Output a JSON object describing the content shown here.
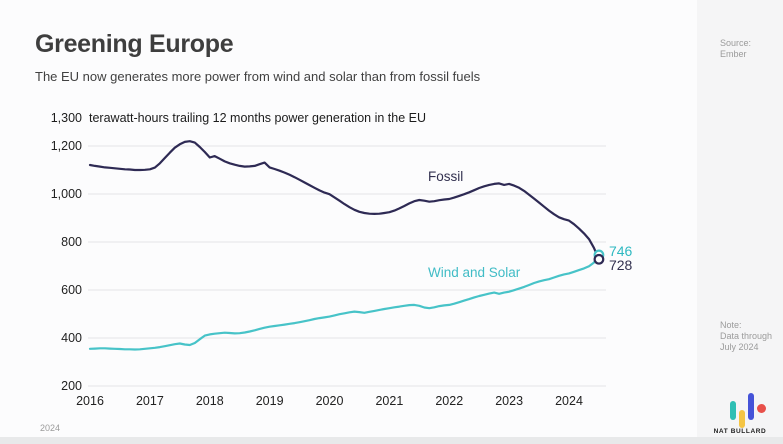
{
  "header": {
    "title": "Greening Europe",
    "subtitle": "The EU now generates more power from wind and solar than from fossil fuels"
  },
  "chart": {
    "y_axis_top_label": "1,300",
    "axis_title": "terawatt-hours trailing 12 months power generation in the EU",
    "series_labels": {
      "fossil": "Fossil",
      "wind": "Wind and Solar"
    },
    "end_values": {
      "fossil": "728",
      "wind": "746"
    }
  },
  "chart_data": {
    "type": "line",
    "title": "1,300 terawatt-hours trailing 12 months power generation in the EU",
    "x_start": "2016-01",
    "x_end": "2024-07",
    "x_interval": "monthly",
    "x_ticks": [
      2016,
      2017,
      2018,
      2019,
      2020,
      2021,
      2022,
      2023,
      2024
    ],
    "y_ticks": [
      {
        "value": 1200,
        "label": "1,200"
      },
      {
        "value": 1000,
        "label": "1,000"
      },
      {
        "value": 800,
        "label": "800"
      },
      {
        "value": 600,
        "label": "600"
      },
      {
        "value": 400,
        "label": "400"
      },
      {
        "value": 200,
        "label": "200"
      }
    ],
    "ylim": [
      200,
      1300
    ],
    "grid": true,
    "series": [
      {
        "name": "Fossil",
        "color": "#2e2a54",
        "final_value": 728,
        "values": [
          1121,
          1117,
          1114,
          1111,
          1109,
          1107,
          1105,
          1103,
          1102,
          1100,
          1100,
          1101,
          1103,
          1110,
          1128,
          1150,
          1172,
          1193,
          1207,
          1217,
          1220,
          1214,
          1196,
          1175,
          1152,
          1158,
          1147,
          1136,
          1128,
          1122,
          1117,
          1114,
          1115,
          1117,
          1124,
          1131,
          1111,
          1104,
          1097,
          1089,
          1080,
          1070,
          1059,
          1048,
          1037,
          1026,
          1015,
          1006,
          999,
          986,
          972,
          958,
          945,
          934,
          926,
          921,
          918,
          917,
          918,
          921,
          924,
          931,
          940,
          950,
          961,
          970,
          975,
          972,
          968,
          970,
          974,
          977,
          979,
          985,
          992,
          999,
          1007,
          1016,
          1025,
          1032,
          1038,
          1042,
          1044,
          1038,
          1042,
          1035,
          1026,
          1013,
          997,
          981,
          964,
          947,
          931,
          916,
          903,
          895,
          889,
          874,
          856,
          836,
          812,
          776,
          728
        ]
      },
      {
        "name": "Wind and Solar",
        "color": "#47c3c8",
        "final_value": 746,
        "values": [
          355,
          356,
          357,
          357,
          356,
          355,
          354,
          353,
          353,
          352,
          353,
          355,
          357,
          359,
          362,
          366,
          370,
          374,
          377,
          373,
          371,
          379,
          395,
          410,
          415,
          418,
          420,
          422,
          421,
          419,
          420,
          423,
          427,
          432,
          438,
          443,
          447,
          450,
          453,
          456,
          459,
          462,
          466,
          470,
          474,
          479,
          483,
          486,
          489,
          494,
          499,
          503,
          507,
          510,
          508,
          505,
          509,
          513,
          517,
          521,
          524,
          528,
          531,
          534,
          537,
          538,
          534,
          527,
          524,
          528,
          533,
          536,
          538,
          543,
          549,
          556,
          562,
          569,
          575,
          580,
          585,
          589,
          584,
          589,
          593,
          599,
          606,
          613,
          621,
          629,
          636,
          641,
          645,
          652,
          659,
          665,
          669,
          676,
          683,
          690,
          699,
          714,
          746
        ]
      }
    ],
    "legend_position": "inline-labels"
  },
  "sidebar": {
    "source_label": "Source:",
    "source_value": "Ember",
    "note_label": "Note:",
    "note_text": "Data through July 2024",
    "wordmark": "NAT BULLARD",
    "logo_colors": {
      "teal": "#2ebfb4",
      "yellow": "#f5c544",
      "indigo": "#4553d8",
      "red": "#e8504a"
    }
  },
  "footer": {
    "corner_year": "2024"
  },
  "colors": {
    "grid": "#e4e4e6",
    "background": "#fcfcfd",
    "sidebar_bg": "#f5f5f6"
  }
}
